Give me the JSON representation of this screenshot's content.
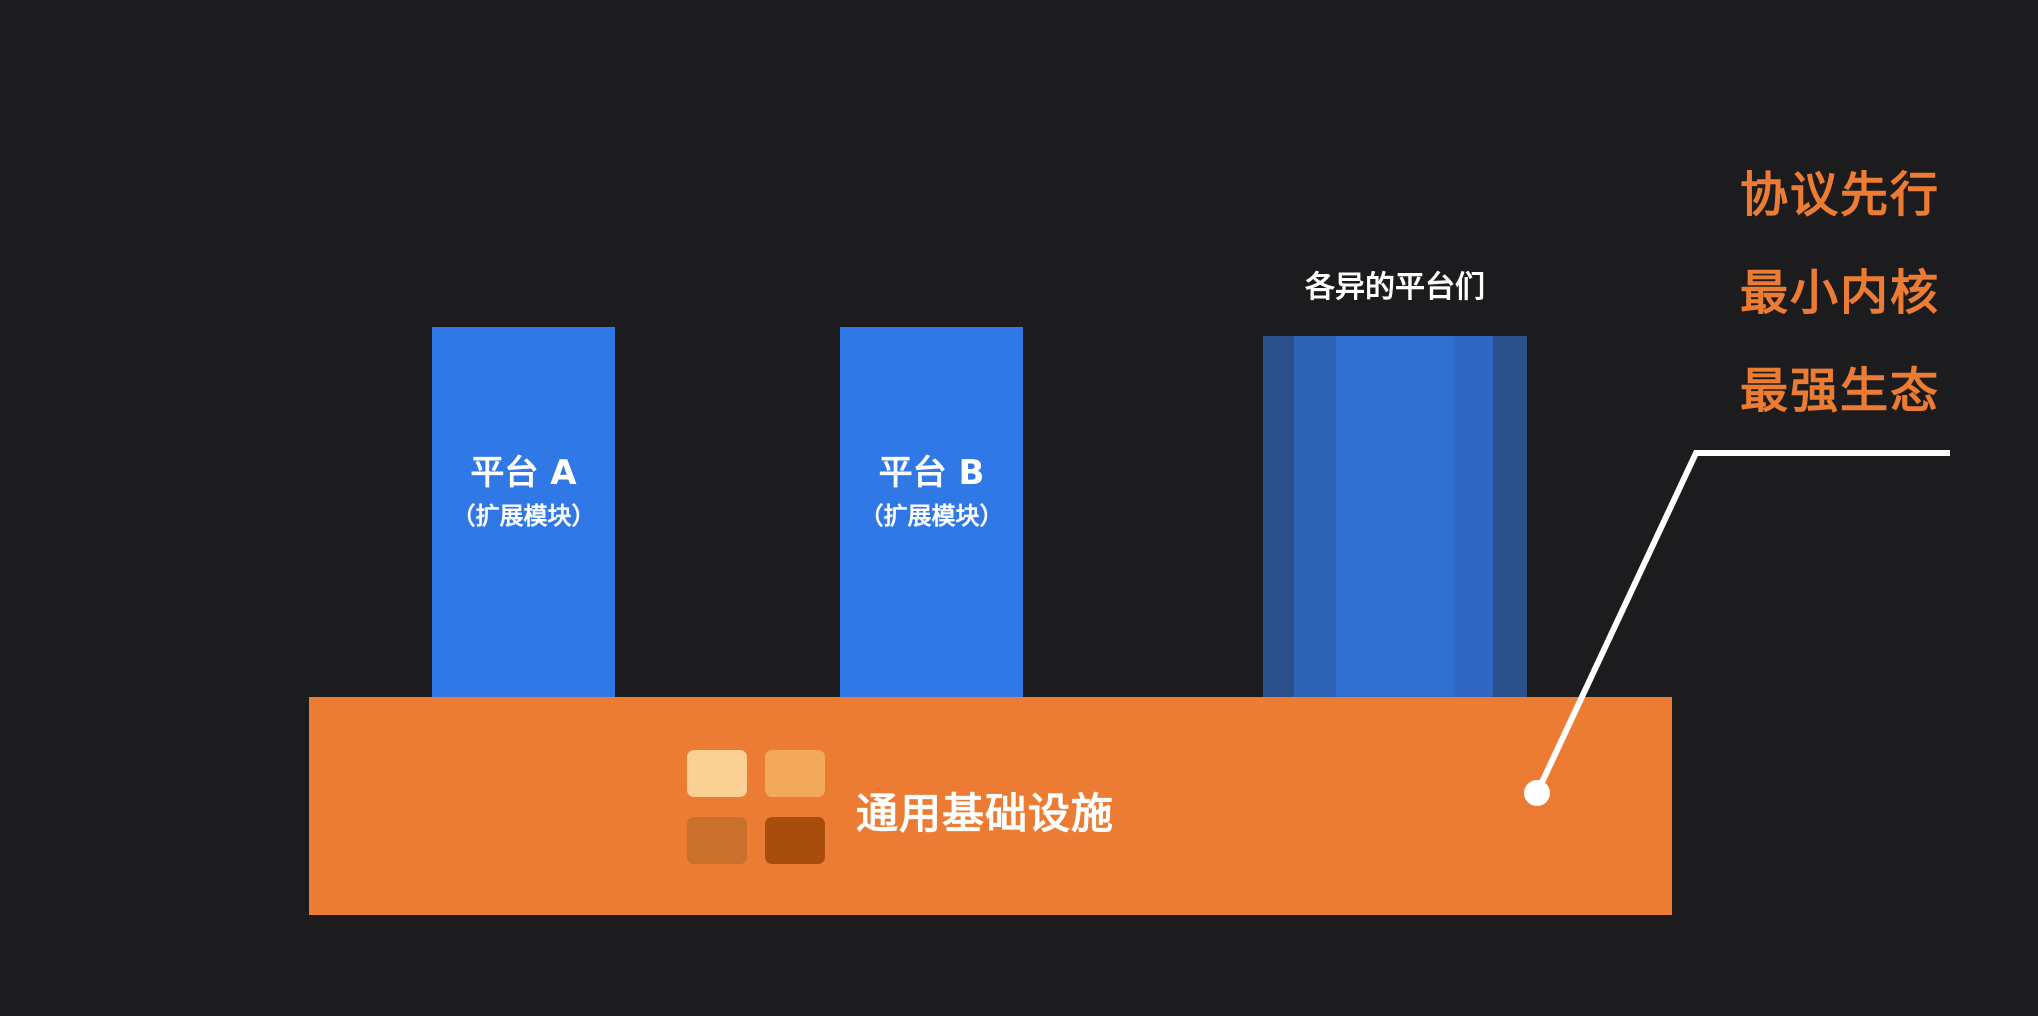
{
  "platforms": [
    {
      "title": "平台 A",
      "subtitle": "（扩展模块）"
    },
    {
      "title": "平台 B",
      "subtitle": "（扩展模块）"
    }
  ],
  "diverse_platforms": {
    "label": "各异的平台们",
    "strip_colors": [
      "#2a4f8a",
      "#2f63b5",
      "#2f6fd0",
      "#2f6fd0",
      "#2f66c2",
      "#2a4f8a"
    ],
    "strip_widths": [
      30,
      40,
      82,
      30,
      38,
      32
    ]
  },
  "foundation": {
    "label": "通用基础设施",
    "color": "#ec7b33",
    "tile_colors": [
      "#fbd095",
      "#f3a95a",
      "#c9702c",
      "#a84e0c"
    ]
  },
  "principles": [
    "协议先行",
    "最小内核",
    "最强生态"
  ],
  "colors": {
    "background": "#1c1c1e",
    "platform_blue": "#2f78e6",
    "accent_orange": "#ec7b33",
    "pointer_line": "#ffffff"
  }
}
